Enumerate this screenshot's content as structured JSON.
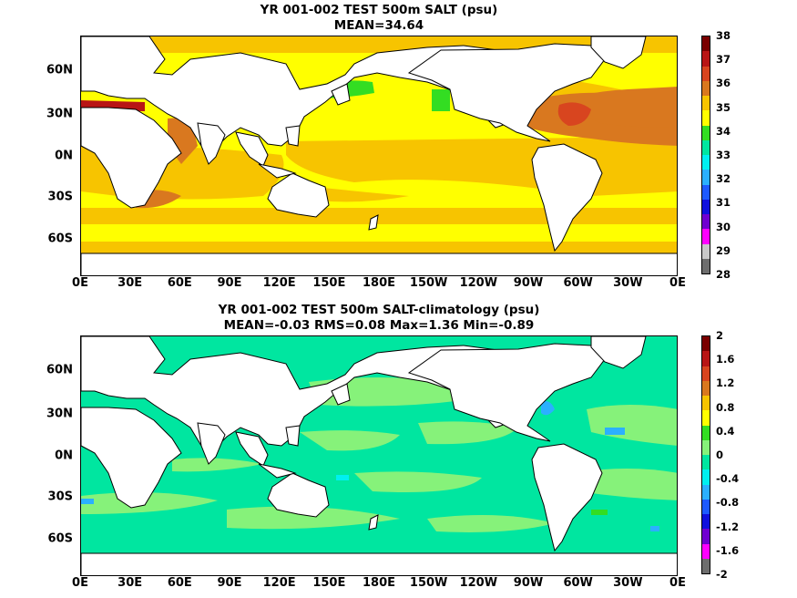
{
  "panels": [
    {
      "title": "YR 001-002 TEST 500m SALT (psu)",
      "subtitle": "MEAN=34.64",
      "colorbar": {
        "labels": [
          "38",
          "37",
          "36",
          "35",
          "34",
          "33",
          "32",
          "31",
          "30",
          "29",
          "28"
        ],
        "colors": [
          "#7a0000",
          "#b81515",
          "#d8451f",
          "#d9781f",
          "#f7c400",
          "#ffff00",
          "#33dd22",
          "#00e6a0",
          "#00f0f0",
          "#2bb0ff",
          "#1e5aff",
          "#1010dd",
          "#7000d0",
          "#ff00ff",
          "#c8c8c8",
          "#6e6e6e"
        ]
      }
    },
    {
      "title": "YR 001-002 TEST 500m SALT-climatology (psu)",
      "subtitle": "MEAN=-0.03   RMS=0.08   Max=1.36   Min=-0.89",
      "colorbar": {
        "labels": [
          "2",
          "1.6",
          "1.2",
          "0.8",
          "0.4",
          "0",
          "-0.4",
          "-0.8",
          "-1.2",
          "-1.6",
          "-2"
        ],
        "colors": [
          "#7a0000",
          "#b81515",
          "#d8451f",
          "#d9781f",
          "#f7c400",
          "#ffff00",
          "#33dd22",
          "#86f27a",
          "#00e6a0",
          "#00f0f0",
          "#2bb0ff",
          "#1e5aff",
          "#1010dd",
          "#7000d0",
          "#ff00ff",
          "#6e6e6e"
        ]
      }
    }
  ],
  "x_ticks": [
    "0E",
    "30E",
    "60E",
    "90E",
    "120E",
    "150E",
    "180E",
    "150W",
    "120W",
    "90W",
    "60W",
    "30W",
    "0E"
  ],
  "y_ticks": [
    "60N",
    "30N",
    "0N",
    "30S",
    "60S"
  ]
}
